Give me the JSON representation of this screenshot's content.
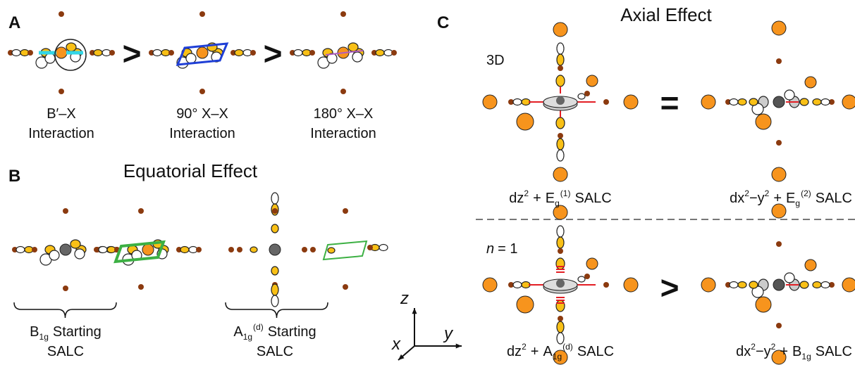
{
  "panel_a": {
    "label": "A",
    "comparators": [
      ">",
      ">"
    ],
    "items": [
      {
        "line1": "B′–X",
        "line2": "Interaction"
      },
      {
        "line1": "90° X–X",
        "line2": "Interaction"
      },
      {
        "line1": "180° X–X",
        "line2": "Interaction"
      }
    ]
  },
  "panel_b": {
    "label": "B",
    "title": "Equatorial Effect",
    "captions": [
      {
        "base": "B",
        "subscript": "1g",
        "rest": "Starting",
        "line2": "SALC"
      },
      {
        "base": "A",
        "subscript": "1g",
        "superscript": "(d)",
        "rest": "Starting",
        "line2": "SALC"
      }
    ],
    "axes": {
      "z": "z",
      "y": "y",
      "x": "x"
    }
  },
  "panel_c": {
    "label": "C",
    "title": "Axial Effect",
    "rows": [
      {
        "tag": "3D",
        "comparator": "=",
        "left": {
          "orbital": "dz",
          "orbital_power": "2",
          "plus": "+",
          "salc": "E",
          "salc_sub": "g",
          "salc_sup": "(1)",
          "suffix": "SALC"
        },
        "right": {
          "orbital": "dx",
          "orbital_power": "2",
          "orbital_rest": "−y",
          "orbital_rest_power": "2",
          "plus": "+",
          "salc": "E",
          "salc_sub": "g",
          "salc_sup": "(2)",
          "suffix": "SALC"
        }
      },
      {
        "tag_variable": "n",
        "tag": "= 1",
        "comparator": ">",
        "left": {
          "orbital": "dz",
          "orbital_power": "2",
          "plus": "+",
          "salc": "A",
          "salc_sub": "1g",
          "salc_sup": "(d)",
          "suffix": "SALC"
        },
        "right": {
          "orbital": "dx",
          "orbital_power": "2",
          "orbital_rest": "−y",
          "orbital_rest_power": "2",
          "plus": "+",
          "salc": "B",
          "salc_sub": "1g",
          "suffix": "SALC"
        }
      }
    ]
  }
}
